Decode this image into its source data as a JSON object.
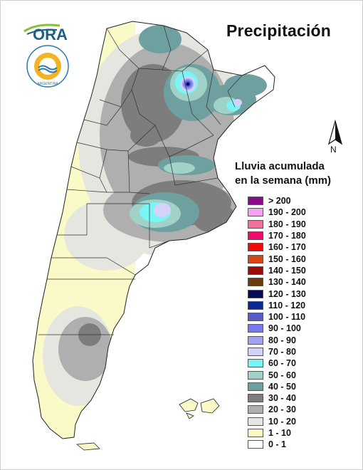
{
  "header": {
    "title": "Precipitación",
    "logo_text": "ORA",
    "seal_text": "ARGENTINA"
  },
  "north_arrow": {
    "label": "N"
  },
  "legend": {
    "title_line1": "Lluvia acumulada",
    "title_line2": "en la semana (mm)",
    "items": [
      {
        "label": "> 200",
        "color": "#8b0a8b"
      },
      {
        "label": "190 - 200",
        "color": "#f5a3f0"
      },
      {
        "label": "180 - 190",
        "color": "#f0709a"
      },
      {
        "label": "170 - 180",
        "color": "#f00a6e"
      },
      {
        "label": "160 - 170",
        "color": "#f00a0a"
      },
      {
        "label": "150 - 160",
        "color": "#dc4614"
      },
      {
        "label": "140 - 150",
        "color": "#a00a0a"
      },
      {
        "label": "130 - 140",
        "color": "#6e3c0a"
      },
      {
        "label": "120 - 130",
        "color": "#0a0a5a"
      },
      {
        "label": "110 - 120",
        "color": "#0a2896"
      },
      {
        "label": "100 - 110",
        "color": "#5a5ac8"
      },
      {
        "label": "90 - 100",
        "color": "#7878f0"
      },
      {
        "label": "80 - 90",
        "color": "#a0a0f5"
      },
      {
        "label": "70 - 80",
        "color": "#d2d2fa"
      },
      {
        "label": "60 - 70",
        "color": "#78f5f5"
      },
      {
        "label": "50 - 60",
        "color": "#a0d2c8"
      },
      {
        "label": "40 - 50",
        "color": "#6ea0a0"
      },
      {
        "label": "30 - 40",
        "color": "#7d7d7d"
      },
      {
        "label": "20 - 30",
        "color": "#afafaf"
      },
      {
        "label": "10 - 20",
        "color": "#e6e6e0"
      },
      {
        "label": "1 - 10",
        "color": "#fafac8"
      },
      {
        "label": "0 - 1",
        "color": "#ffffff"
      }
    ]
  }
}
